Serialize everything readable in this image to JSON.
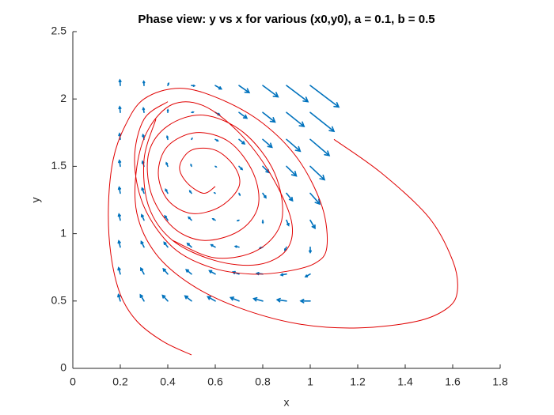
{
  "chart_data": {
    "type": "line",
    "title": "Phase view: y vs x for various (x0,y0), a = 0.1, b = 0.5",
    "x_label": "x",
    "y_label": "y",
    "xlim": [
      0,
      1.8
    ],
    "ylim": [
      0,
      2.5
    ],
    "xticks": [
      0,
      0.2,
      0.4,
      0.6,
      0.8,
      1,
      1.2,
      1.4,
      1.6,
      1.8
    ],
    "yticks": [
      0,
      0.5,
      1,
      1.5,
      2,
      2.5
    ],
    "quiver": {
      "color": "#0072bd",
      "x": [
        0.2,
        0.3,
        0.4,
        0.5,
        0.6,
        0.7,
        0.8,
        0.9,
        1.0
      ],
      "y": [
        0.5,
        0.7,
        0.9,
        1.1,
        1.3,
        1.5,
        1.7,
        1.9,
        2.1
      ],
      "u": [
        [
          -0.08,
          -0.155,
          -0.22,
          -0.275,
          -0.32,
          -0.355,
          -0.38,
          -0.395,
          -0.4
        ],
        [
          -0.072,
          -0.137,
          -0.188,
          -0.225,
          -0.248,
          -0.257,
          -0.252,
          -0.233,
          -0.2
        ],
        [
          -0.064,
          -0.119,
          -0.156,
          -0.175,
          -0.176,
          -0.159,
          -0.124,
          -0.071,
          0
        ],
        [
          -0.056,
          -0.101,
          -0.124,
          -0.125,
          -0.104,
          -0.061,
          0.004,
          0.091,
          0.2
        ],
        [
          -0.048,
          -0.083,
          -0.092,
          -0.075,
          -0.032,
          0.037,
          0.132,
          0.253,
          0.4
        ],
        [
          -0.04,
          -0.065,
          -0.06,
          -0.025,
          0.04,
          0.135,
          0.26,
          0.415,
          0.6
        ],
        [
          -0.032,
          -0.047,
          -0.028,
          0.025,
          0.112,
          0.233,
          0.388,
          0.577,
          0.8
        ],
        [
          -0.024,
          -0.029,
          0.004,
          0.075,
          0.184,
          0.331,
          0.516,
          0.739,
          1.0
        ],
        [
          -0.016,
          -0.011,
          0.036,
          0.125,
          0.256,
          0.429,
          0.644,
          0.901,
          1.2
        ]
      ],
      "v": [
        [
          0.48,
          0.455,
          0.42,
          0.375,
          0.32,
          0.255,
          0.18,
          0.095,
          0
        ],
        [
          0.472,
          0.437,
          0.388,
          0.325,
          0.248,
          0.157,
          0.052,
          -0.067,
          -0.2
        ],
        [
          0.464,
          0.419,
          0.356,
          0.275,
          0.176,
          0.059,
          -0.076,
          -0.229,
          -0.4
        ],
        [
          0.456,
          0.401,
          0.324,
          0.225,
          0.104,
          -0.039,
          -0.204,
          -0.391,
          -0.6
        ],
        [
          0.448,
          0.383,
          0.292,
          0.175,
          0.032,
          -0.137,
          -0.332,
          -0.553,
          -0.8
        ],
        [
          0.44,
          0.365,
          0.26,
          0.125,
          -0.04,
          -0.235,
          -0.46,
          -0.715,
          -1.0
        ],
        [
          0.432,
          0.347,
          0.228,
          0.075,
          -0.112,
          -0.333,
          -0.588,
          -0.877,
          -1.2
        ],
        [
          0.424,
          0.329,
          0.196,
          0.025,
          -0.184,
          -0.431,
          -0.716,
          -1.039,
          -1.4
        ],
        [
          0.416,
          0.311,
          0.164,
          -0.025,
          -0.256,
          -0.529,
          -0.844,
          -1.201,
          -1.6
        ]
      ]
    },
    "series": [
      {
        "color": "#e00000",
        "x": [
          1.1,
          1.3,
          1.5,
          1.6,
          1.62,
          1.58,
          1.45,
          1.2,
          0.95,
          0.7,
          0.5,
          0.35,
          0.27,
          0.27,
          0.32,
          0.42,
          0.55,
          0.7,
          0.83,
          0.92,
          0.9,
          0.78,
          0.6,
          0.42,
          0.32,
          0.3,
          0.35
        ],
        "y": [
          1.7,
          1.45,
          1.12,
          0.8,
          0.58,
          0.45,
          0.35,
          0.3,
          0.33,
          0.45,
          0.62,
          0.85,
          1.15,
          1.5,
          1.78,
          1.96,
          1.95,
          1.75,
          1.45,
          1.1,
          0.88,
          0.77,
          0.8,
          0.95,
          1.2,
          1.55,
          1.85
        ]
      },
      {
        "color": "#e00000",
        "x": [
          0.5,
          0.38,
          0.27,
          0.2,
          0.16,
          0.15,
          0.17,
          0.22,
          0.3,
          0.45,
          0.62,
          0.8,
          0.95,
          1.05,
          1.07,
          1.02,
          0.9,
          0.75,
          0.58,
          0.42,
          0.3,
          0.26,
          0.3,
          0.4
        ],
        "y": [
          0.1,
          0.2,
          0.35,
          0.55,
          0.85,
          1.2,
          1.55,
          1.8,
          2.0,
          2.08,
          2.0,
          1.82,
          1.55,
          1.2,
          0.9,
          0.78,
          0.72,
          0.7,
          0.75,
          0.9,
          1.2,
          1.55,
          1.85,
          1.98
        ]
      },
      {
        "color": "#e00000",
        "x": [
          0.6,
          0.55,
          0.48,
          0.45,
          0.5,
          0.6,
          0.68,
          0.7,
          0.62,
          0.5,
          0.4,
          0.36,
          0.4,
          0.52,
          0.66,
          0.76,
          0.78,
          0.7,
          0.55,
          0.42,
          0.33,
          0.32,
          0.4,
          0.55,
          0.72,
          0.85,
          0.88,
          0.78,
          0.6,
          0.42
        ],
        "y": [
          1.35,
          1.3,
          1.38,
          1.5,
          1.62,
          1.62,
          1.5,
          1.35,
          1.2,
          1.15,
          1.25,
          1.45,
          1.65,
          1.75,
          1.68,
          1.45,
          1.2,
          1.02,
          0.95,
          1.05,
          1.3,
          1.6,
          1.8,
          1.88,
          1.75,
          1.45,
          1.1,
          0.88,
          0.82,
          0.95
        ]
      }
    ]
  }
}
